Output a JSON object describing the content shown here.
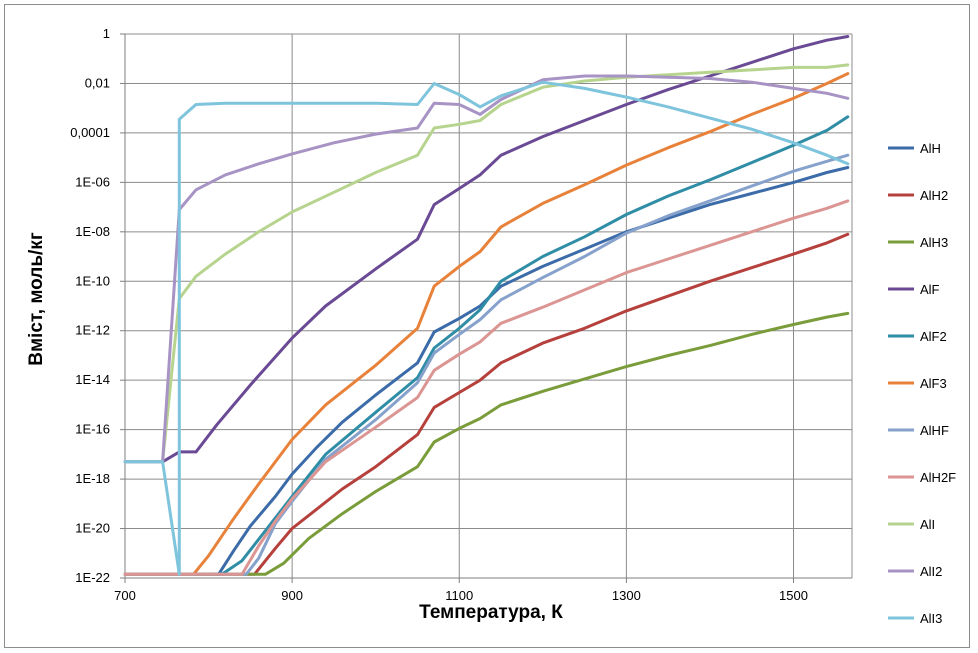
{
  "chart_data": {
    "type": "line",
    "xlabel": "Температура, К",
    "ylabel": "Вміст, моль/кг",
    "xlim": [
      700,
      1570
    ],
    "ylim_log10": [
      -22,
      0
    ],
    "y_scale": "log",
    "x_ticks": [
      "700",
      "900",
      "1100",
      "1300",
      "1500"
    ],
    "y_ticks": [
      "1E-22",
      "1E-20",
      "1E-18",
      "1E-16",
      "1E-14",
      "1E-12",
      "1E-10",
      "1E-08",
      "1E-06",
      "0,0001",
      "0,01",
      "1"
    ],
    "grid": true,
    "legend_position": "right",
    "series": [
      {
        "name": "AlH",
        "color": "#3b6ba8",
        "points": [
          [
            700,
            -21.85
          ],
          [
            812,
            -21.85
          ],
          [
            830,
            -20.9
          ],
          [
            850,
            -19.9
          ],
          [
            880,
            -18.7
          ],
          [
            900,
            -17.8
          ],
          [
            930,
            -16.7
          ],
          [
            960,
            -15.7
          ],
          [
            1000,
            -14.6
          ],
          [
            1050,
            -13.3
          ],
          [
            1070,
            -12.05
          ],
          [
            1100,
            -11.5
          ],
          [
            1125,
            -11.0
          ],
          [
            1150,
            -10.2
          ],
          [
            1200,
            -9.4
          ],
          [
            1250,
            -8.7
          ],
          [
            1300,
            -8.0
          ],
          [
            1350,
            -7.45
          ],
          [
            1400,
            -6.9
          ],
          [
            1450,
            -6.45
          ],
          [
            1500,
            -6.0
          ],
          [
            1540,
            -5.6
          ],
          [
            1565,
            -5.4
          ]
        ]
      },
      {
        "name": "AlH2",
        "color": "#b5403c",
        "points": [
          [
            700,
            -21.85
          ],
          [
            855,
            -21.85
          ],
          [
            880,
            -20.8
          ],
          [
            900,
            -20.0
          ],
          [
            930,
            -19.2
          ],
          [
            960,
            -18.4
          ],
          [
            1000,
            -17.5
          ],
          [
            1050,
            -16.2
          ],
          [
            1070,
            -15.1
          ],
          [
            1100,
            -14.5
          ],
          [
            1125,
            -14.0
          ],
          [
            1150,
            -13.3
          ],
          [
            1200,
            -12.5
          ],
          [
            1250,
            -11.9
          ],
          [
            1300,
            -11.2
          ],
          [
            1350,
            -10.6
          ],
          [
            1400,
            -10.0
          ],
          [
            1450,
            -9.45
          ],
          [
            1500,
            -8.9
          ],
          [
            1540,
            -8.45
          ],
          [
            1565,
            -8.1
          ]
        ]
      },
      {
        "name": "AlH3",
        "color": "#7a9c3a",
        "points": [
          [
            700,
            -21.85
          ],
          [
            868,
            -21.85
          ],
          [
            890,
            -21.4
          ],
          [
            920,
            -20.4
          ],
          [
            960,
            -19.4
          ],
          [
            1000,
            -18.5
          ],
          [
            1050,
            -17.5
          ],
          [
            1070,
            -16.5
          ],
          [
            1100,
            -15.95
          ],
          [
            1125,
            -15.55
          ],
          [
            1150,
            -15.0
          ],
          [
            1200,
            -14.45
          ],
          [
            1250,
            -13.95
          ],
          [
            1300,
            -13.45
          ],
          [
            1350,
            -13.0
          ],
          [
            1400,
            -12.6
          ],
          [
            1450,
            -12.15
          ],
          [
            1500,
            -11.75
          ],
          [
            1540,
            -11.45
          ],
          [
            1565,
            -11.3
          ]
        ]
      },
      {
        "name": "AlF",
        "color": "#6a4a94",
        "points": [
          [
            700,
            -17.3
          ],
          [
            745,
            -17.3
          ],
          [
            765,
            -16.9
          ],
          [
            785,
            -16.9
          ],
          [
            810,
            -15.8
          ],
          [
            850,
            -14.2
          ],
          [
            900,
            -12.3
          ],
          [
            940,
            -11.0
          ],
          [
            1000,
            -9.5
          ],
          [
            1050,
            -8.3
          ],
          [
            1070,
            -6.9
          ],
          [
            1100,
            -6.25
          ],
          [
            1125,
            -5.7
          ],
          [
            1150,
            -4.9
          ],
          [
            1200,
            -4.15
          ],
          [
            1250,
            -3.5
          ],
          [
            1300,
            -2.85
          ],
          [
            1350,
            -2.25
          ],
          [
            1400,
            -1.7
          ],
          [
            1450,
            -1.15
          ],
          [
            1500,
            -0.6
          ],
          [
            1540,
            -0.25
          ],
          [
            1565,
            -0.1
          ]
        ]
      },
      {
        "name": "AlF2",
        "color": "#2f8da6",
        "points": [
          [
            700,
            -21.85
          ],
          [
            816,
            -21.85
          ],
          [
            840,
            -21.3
          ],
          [
            870,
            -20.0
          ],
          [
            900,
            -18.7
          ],
          [
            940,
            -17.0
          ],
          [
            1000,
            -15.3
          ],
          [
            1050,
            -13.9
          ],
          [
            1070,
            -12.7
          ],
          [
            1100,
            -11.9
          ],
          [
            1125,
            -11.15
          ],
          [
            1150,
            -10.0
          ],
          [
            1200,
            -9.0
          ],
          [
            1250,
            -8.2
          ],
          [
            1300,
            -7.3
          ],
          [
            1350,
            -6.55
          ],
          [
            1400,
            -5.9
          ],
          [
            1450,
            -5.2
          ],
          [
            1500,
            -4.5
          ],
          [
            1540,
            -3.9
          ],
          [
            1565,
            -3.35
          ]
        ]
      },
      {
        "name": "AlF3",
        "color": "#e8823a",
        "points": [
          [
            700,
            -21.85
          ],
          [
            782,
            -21.85
          ],
          [
            800,
            -21.1
          ],
          [
            830,
            -19.6
          ],
          [
            860,
            -18.2
          ],
          [
            900,
            -16.4
          ],
          [
            940,
            -15.0
          ],
          [
            1000,
            -13.4
          ],
          [
            1050,
            -11.9
          ],
          [
            1070,
            -10.2
          ],
          [
            1100,
            -9.4
          ],
          [
            1125,
            -8.8
          ],
          [
            1150,
            -7.8
          ],
          [
            1200,
            -6.85
          ],
          [
            1250,
            -6.1
          ],
          [
            1300,
            -5.3
          ],
          [
            1350,
            -4.6
          ],
          [
            1400,
            -3.95
          ],
          [
            1450,
            -3.25
          ],
          [
            1500,
            -2.6
          ],
          [
            1540,
            -2.0
          ],
          [
            1565,
            -1.6
          ]
        ]
      },
      {
        "name": "AlHF",
        "color": "#86a2cc",
        "points": [
          [
            700,
            -21.85
          ],
          [
            845,
            -21.85
          ],
          [
            860,
            -21.2
          ],
          [
            880,
            -19.8
          ],
          [
            900,
            -18.9
          ],
          [
            940,
            -17.2
          ],
          [
            1000,
            -15.6
          ],
          [
            1050,
            -14.1
          ],
          [
            1070,
            -12.9
          ],
          [
            1100,
            -12.15
          ],
          [
            1125,
            -11.55
          ],
          [
            1150,
            -10.75
          ],
          [
            1200,
            -9.85
          ],
          [
            1250,
            -9.0
          ],
          [
            1300,
            -8.05
          ],
          [
            1350,
            -7.35
          ],
          [
            1400,
            -6.75
          ],
          [
            1450,
            -6.15
          ],
          [
            1500,
            -5.55
          ],
          [
            1540,
            -5.15
          ],
          [
            1565,
            -4.9
          ]
        ]
      },
      {
        "name": "AlH2F",
        "color": "#db9593",
        "points": [
          [
            700,
            -21.85
          ],
          [
            840,
            -21.85
          ],
          [
            860,
            -20.7
          ],
          [
            880,
            -19.7
          ],
          [
            900,
            -18.8
          ],
          [
            940,
            -17.3
          ],
          [
            1000,
            -15.9
          ],
          [
            1050,
            -14.7
          ],
          [
            1070,
            -13.6
          ],
          [
            1100,
            -12.95
          ],
          [
            1125,
            -12.45
          ],
          [
            1150,
            -11.7
          ],
          [
            1200,
            -11.05
          ],
          [
            1250,
            -10.35
          ],
          [
            1300,
            -9.65
          ],
          [
            1350,
            -9.1
          ],
          [
            1400,
            -8.55
          ],
          [
            1450,
            -8.0
          ],
          [
            1500,
            -7.45
          ],
          [
            1540,
            -7.05
          ],
          [
            1565,
            -6.75
          ]
        ]
      },
      {
        "name": "AlI",
        "color": "#b7d48e",
        "points": [
          [
            700,
            -17.3
          ],
          [
            745,
            -17.3
          ],
          [
            765,
            -10.7
          ],
          [
            785,
            -9.8
          ],
          [
            820,
            -8.9
          ],
          [
            860,
            -8.0
          ],
          [
            900,
            -7.2
          ],
          [
            950,
            -6.4
          ],
          [
            1000,
            -5.6
          ],
          [
            1050,
            -4.9
          ],
          [
            1070,
            -3.8
          ],
          [
            1100,
            -3.65
          ],
          [
            1125,
            -3.5
          ],
          [
            1150,
            -2.85
          ],
          [
            1200,
            -2.15
          ],
          [
            1250,
            -1.9
          ],
          [
            1300,
            -1.75
          ],
          [
            1350,
            -1.65
          ],
          [
            1400,
            -1.55
          ],
          [
            1450,
            -1.45
          ],
          [
            1500,
            -1.35
          ],
          [
            1540,
            -1.35
          ],
          [
            1565,
            -1.25
          ]
        ]
      },
      {
        "name": "AlI2",
        "color": "#a793c4",
        "points": [
          [
            700,
            -17.3
          ],
          [
            745,
            -17.3
          ],
          [
            765,
            -7.1
          ],
          [
            785,
            -6.3
          ],
          [
            820,
            -5.7
          ],
          [
            860,
            -5.25
          ],
          [
            900,
            -4.85
          ],
          [
            950,
            -4.4
          ],
          [
            1000,
            -4.05
          ],
          [
            1050,
            -3.8
          ],
          [
            1070,
            -2.8
          ],
          [
            1100,
            -2.85
          ],
          [
            1125,
            -3.25
          ],
          [
            1150,
            -2.65
          ],
          [
            1200,
            -1.85
          ],
          [
            1250,
            -1.7
          ],
          [
            1300,
            -1.7
          ],
          [
            1350,
            -1.75
          ],
          [
            1400,
            -1.8
          ],
          [
            1450,
            -1.95
          ],
          [
            1500,
            -2.2
          ],
          [
            1540,
            -2.4
          ],
          [
            1565,
            -2.6
          ]
        ]
      },
      {
        "name": "AlI3",
        "color": "#7ec4dc",
        "points": [
          [
            700,
            -17.3
          ],
          [
            745,
            -17.3
          ],
          [
            765,
            -21.85
          ],
          [
            765,
            -3.45
          ],
          [
            785,
            -2.85
          ],
          [
            820,
            -2.8
          ],
          [
            900,
            -2.8
          ],
          [
            1000,
            -2.8
          ],
          [
            1050,
            -2.85
          ],
          [
            1070,
            -2.0
          ],
          [
            1100,
            -2.45
          ],
          [
            1125,
            -2.95
          ],
          [
            1150,
            -2.5
          ],
          [
            1200,
            -1.95
          ],
          [
            1250,
            -2.2
          ],
          [
            1300,
            -2.55
          ],
          [
            1350,
            -2.95
          ],
          [
            1400,
            -3.4
          ],
          [
            1450,
            -3.85
          ],
          [
            1500,
            -4.4
          ],
          [
            1540,
            -4.9
          ],
          [
            1565,
            -5.25
          ]
        ]
      }
    ]
  }
}
